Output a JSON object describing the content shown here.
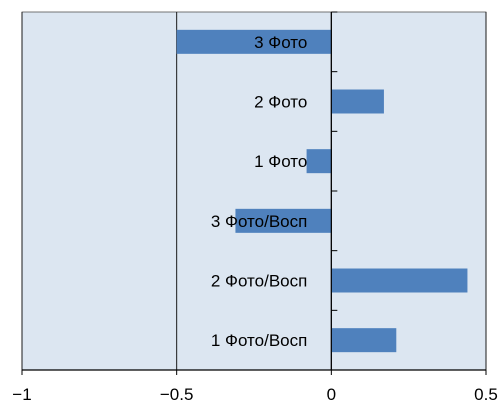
{
  "chart_data": {
    "type": "bar",
    "orientation": "horizontal",
    "categories": [
      "3 Фото",
      "2 Фото",
      "1 Фото",
      "3 Фото/Восп",
      "2 Фото/Восп",
      "1 Фото/Восп"
    ],
    "values": [
      -0.5,
      0.17,
      -0.08,
      -0.31,
      0.44,
      0.21
    ],
    "xlim": [
      -1,
      0.5
    ],
    "xticks": [
      -1,
      -0.5,
      0,
      0.5
    ],
    "xtick_labels": [
      "−1",
      "−0.5",
      "0",
      "0.5"
    ],
    "grid": "vertical",
    "legend": "none",
    "title": "",
    "xlabel": "",
    "ylabel": "",
    "colors": {
      "plot_background": "#dce6f1",
      "bar": "#4f81bd",
      "gridline": "#1a1a1a",
      "axis": "#000000"
    }
  }
}
